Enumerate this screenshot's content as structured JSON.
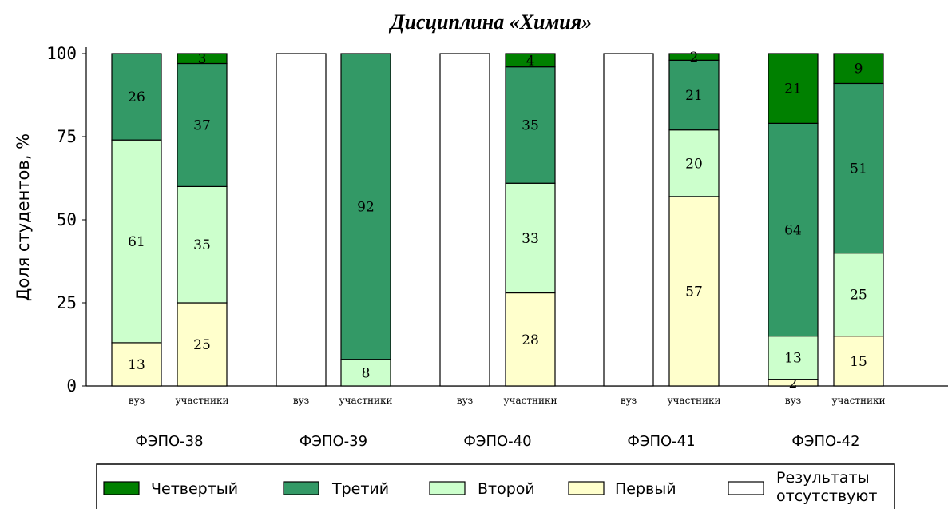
{
  "chart_data": {
    "type": "bar",
    "title": "Дисциплина «Химия»",
    "ylabel": "Доля студентов, %",
    "ylim": [
      0,
      100
    ],
    "yticks": [
      0,
      25,
      50,
      75,
      100
    ],
    "stack_order": [
      "Первый",
      "Второй",
      "Третий",
      "Четвертый"
    ],
    "groups": [
      {
        "name": "ФЭПО-38",
        "bars": [
          {
            "label": "вуз",
            "values": {
              "Первый": 13,
              "Второй": 61,
              "Третий": 26,
              "Четвертый": 0
            },
            "no_results": false
          },
          {
            "label": "участники",
            "values": {
              "Первый": 25,
              "Второй": 35,
              "Третий": 37,
              "Четвертый": 3
            },
            "no_results": false
          }
        ]
      },
      {
        "name": "ФЭПО-39",
        "bars": [
          {
            "label": "вуз",
            "values": {
              "Первый": 0,
              "Второй": 0,
              "Третий": 0,
              "Четвертый": 0
            },
            "no_results": true
          },
          {
            "label": "участники",
            "values": {
              "Первый": 0,
              "Второй": 8,
              "Третий": 92,
              "Четвертый": 0
            },
            "no_results": false
          }
        ]
      },
      {
        "name": "ФЭПО-40",
        "bars": [
          {
            "label": "вуз",
            "values": {
              "Первый": 0,
              "Второй": 0,
              "Третий": 0,
              "Четвертый": 0
            },
            "no_results": true
          },
          {
            "label": "участники",
            "values": {
              "Первый": 28,
              "Второй": 33,
              "Третий": 35,
              "Четвертый": 4
            },
            "no_results": false
          }
        ]
      },
      {
        "name": "ФЭПО-41",
        "bars": [
          {
            "label": "вуз",
            "values": {
              "Первый": 0,
              "Второй": 0,
              "Третий": 0,
              "Четвертый": 0
            },
            "no_results": true
          },
          {
            "label": "участники",
            "values": {
              "Первый": 57,
              "Второй": 20,
              "Третий": 21,
              "Четвертый": 2
            },
            "no_results": false
          }
        ]
      },
      {
        "name": "ФЭПО-42",
        "bars": [
          {
            "label": "вуз",
            "values": {
              "Первый": 2,
              "Второй": 13,
              "Третий": 64,
              "Четвертый": 21
            },
            "no_results": false
          },
          {
            "label": "участники",
            "values": {
              "Первый": 15,
              "Второй": 25,
              "Третий": 51,
              "Четвертый": 9
            },
            "no_results": false
          }
        ]
      }
    ],
    "legend": {
      "placement": "bottom",
      "items": [
        {
          "name": "Четвертый",
          "color": "#008000"
        },
        {
          "name": "Третий",
          "color": "#339966"
        },
        {
          "name": "Второй",
          "color": "#CCFFCC"
        },
        {
          "name": "Первый",
          "color": "#FFFFCC"
        },
        {
          "name": "Результаты отсутствуют",
          "color": "#FFFFFF",
          "lines": [
            "Результаты",
            "отсутствуют"
          ]
        }
      ]
    },
    "grid": false
  }
}
